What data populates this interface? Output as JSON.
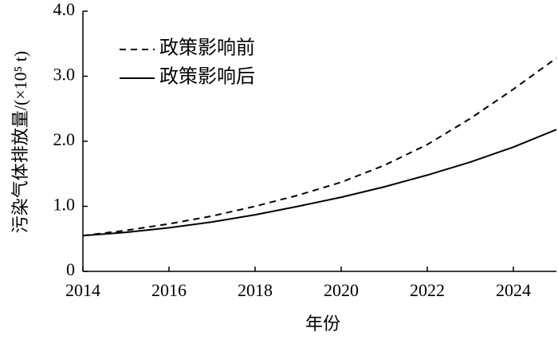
{
  "chart_data": {
    "type": "line",
    "xlabel": "年份",
    "ylabel": "污染气体排放量/(×10⁵ t)",
    "x": [
      2014,
      2015,
      2016,
      2017,
      2018,
      2019,
      2020,
      2021,
      2022,
      2023,
      2024,
      2025
    ],
    "series": [
      {
        "name": "政策影响前",
        "color": "#000000",
        "line_style": "dashed",
        "values": [
          0.55,
          0.63,
          0.73,
          0.85,
          1.0,
          1.17,
          1.37,
          1.63,
          1.95,
          2.35,
          2.8,
          3.28
        ]
      },
      {
        "name": "政策影响后",
        "color": "#000000",
        "line_style": "solid",
        "values": [
          0.55,
          0.6,
          0.67,
          0.76,
          0.87,
          1.0,
          1.14,
          1.3,
          1.48,
          1.68,
          1.91,
          2.18
        ]
      }
    ],
    "xlim": [
      2014,
      2025
    ],
    "xticks": [
      2014,
      2016,
      2018,
      2020,
      2022,
      2024
    ],
    "ylim": [
      0,
      4
    ],
    "yticks": [
      0,
      {
        "value": 1,
        "label": "1.0"
      },
      {
        "value": 2,
        "label": "2.0"
      },
      {
        "value": 3,
        "label": "3.0"
      },
      {
        "value": 4,
        "label": "4.0"
      }
    ],
    "legend": "upper left"
  }
}
